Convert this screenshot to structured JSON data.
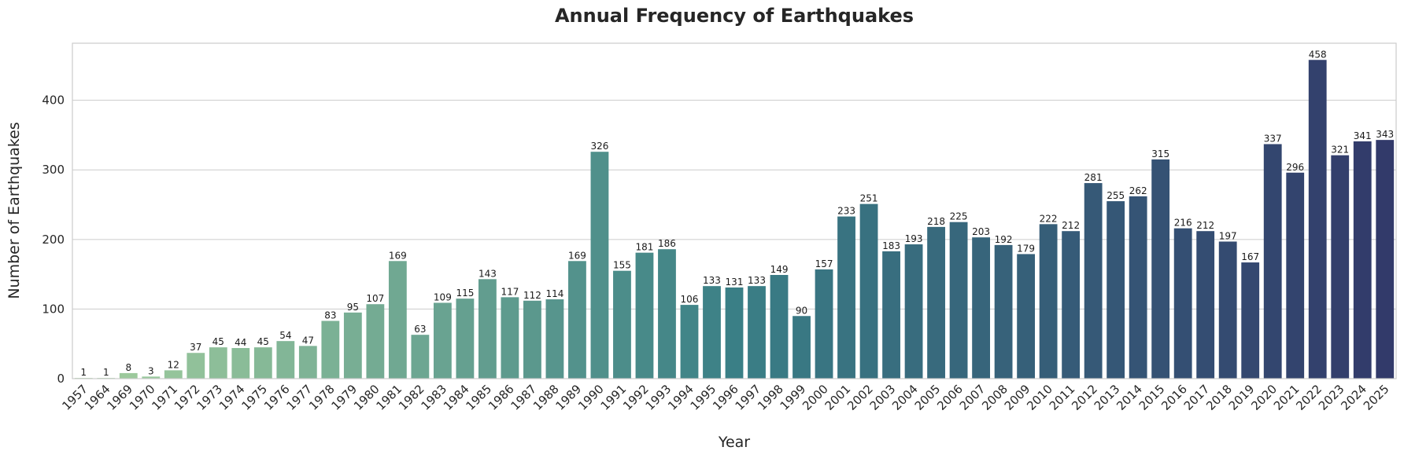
{
  "chart_data": {
    "type": "bar",
    "title": "Annual Frequency of Earthquakes",
    "xlabel": "Year",
    "ylabel": "Number of Earthquakes",
    "ylim": [
      0,
      482
    ],
    "yticks": [
      0,
      100,
      200,
      300,
      400
    ],
    "grid": "y",
    "palette": "crest (light green to dark navy)",
    "categories": [
      "1957",
      "1964",
      "1969",
      "1970",
      "1971",
      "1972",
      "1973",
      "1974",
      "1975",
      "1976",
      "1977",
      "1978",
      "1979",
      "1980",
      "1981",
      "1982",
      "1983",
      "1984",
      "1985",
      "1986",
      "1987",
      "1988",
      "1989",
      "1990",
      "1991",
      "1992",
      "1993",
      "1994",
      "1995",
      "1996",
      "1997",
      "1998",
      "1999",
      "2000",
      "2001",
      "2002",
      "2003",
      "2004",
      "2005",
      "2006",
      "2007",
      "2008",
      "2009",
      "2010",
      "2011",
      "2012",
      "2013",
      "2014",
      "2015",
      "2016",
      "2017",
      "2018",
      "2019",
      "2020",
      "2021",
      "2022",
      "2023",
      "2024",
      "2025"
    ],
    "values": [
      1,
      1,
      8,
      3,
      12,
      37,
      45,
      44,
      45,
      54,
      47,
      83,
      95,
      107,
      169,
      63,
      109,
      115,
      143,
      117,
      112,
      114,
      169,
      326,
      155,
      181,
      186,
      106,
      133,
      131,
      133,
      149,
      90,
      157,
      233,
      251,
      183,
      193,
      218,
      225,
      203,
      192,
      179,
      222,
      212,
      281,
      255,
      262,
      315,
      216,
      212,
      197,
      167,
      337,
      296,
      458,
      321,
      341,
      343
    ],
    "colors": {
      "start": "#a3cf9e",
      "mid": "#3a7f86",
      "end": "#323a6a"
    }
  }
}
